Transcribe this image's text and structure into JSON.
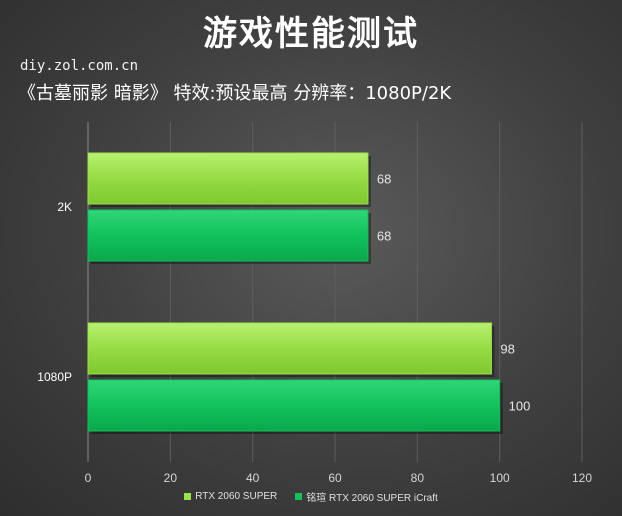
{
  "header": {
    "title": "游戏性能测试",
    "site": "diy.zol.com.cn",
    "subtitle": "《古墓丽影 暗影》   特效:预设最高  分辨率：1080P/2K"
  },
  "colors": {
    "series1": "#9be34a",
    "series2": "#10c25c"
  },
  "chart_data": {
    "type": "bar",
    "orientation": "horizontal",
    "categories": [
      "2K",
      "1080P"
    ],
    "series": [
      {
        "name": "RTX 2060 SUPER",
        "values": [
          68,
          98
        ]
      },
      {
        "name": "铭瑄 RTX 2060 SUPER iCraft",
        "values": [
          68,
          100
        ]
      }
    ],
    "xlim": [
      0,
      120
    ],
    "xticks": [
      0,
      20,
      40,
      60,
      80,
      100,
      120
    ],
    "grid": true,
    "legend": "bottom"
  }
}
